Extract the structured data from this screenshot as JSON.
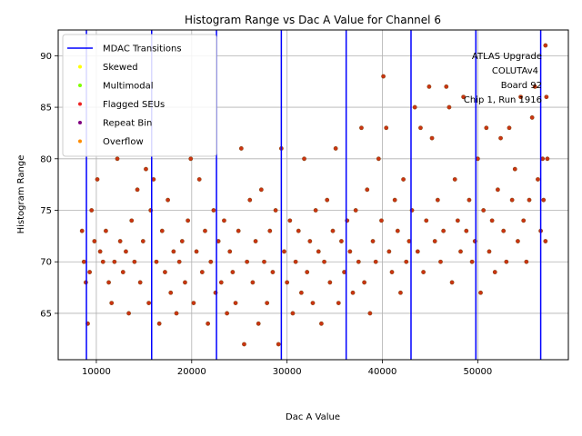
{
  "chart_data": {
    "type": "scatter",
    "title": "Histogram Range vs Dac A Value for Channel 6",
    "xlabel": "Dac A Value",
    "ylabel": "Histogram Range",
    "xlim": [
      6000,
      59500
    ],
    "ylim": [
      60.5,
      92.5
    ],
    "xticks": [
      10000,
      20000,
      30000,
      40000,
      50000
    ],
    "xtick_labels": [
      "10000",
      "20000",
      "30000",
      "40000",
      "50000"
    ],
    "yticks": [
      65,
      70,
      75,
      80,
      85,
      90
    ],
    "ytick_labels": [
      "65",
      "70",
      "75",
      "80",
      "85",
      "90"
    ],
    "grid": true,
    "legend_position": "upper-left",
    "legend": [
      {
        "label": "MDAC Transitions",
        "kind": "line",
        "color": "#0000ff"
      },
      {
        "label": "Skewed",
        "kind": "point",
        "color": "#ffff00"
      },
      {
        "label": "Multimodal",
        "kind": "point",
        "color": "#7fff00"
      },
      {
        "label": "Flagged SEUs",
        "kind": "point",
        "color": "#ee2222"
      },
      {
        "label": "Repeat Bin",
        "kind": "point",
        "color": "#800080"
      },
      {
        "label": "Overflow",
        "kind": "point",
        "color": "#ff8c00"
      }
    ],
    "annotation_lines": [
      "ATLAS Upgrade",
      "COLUTAv4",
      "Board 92",
      "Chip 1, Run 1916"
    ],
    "mdac_transitions": [
      8960,
      15800,
      22600,
      29400,
      36200,
      43000,
      49800,
      56600
    ],
    "series": [
      {
        "name": "Flagged SEUs",
        "color": "#cc3311",
        "edge": "#8b4513",
        "points": [
          [
            8500,
            73
          ],
          [
            8700,
            70
          ],
          [
            8900,
            68
          ],
          [
            9100,
            64
          ],
          [
            9300,
            69
          ],
          [
            9500,
            75
          ],
          [
            9800,
            72
          ],
          [
            10100,
            78
          ],
          [
            10400,
            71
          ],
          [
            10700,
            70
          ],
          [
            11000,
            73
          ],
          [
            11300,
            68
          ],
          [
            11600,
            66
          ],
          [
            11900,
            70
          ],
          [
            12200,
            80
          ],
          [
            12500,
            72
          ],
          [
            12800,
            69
          ],
          [
            13100,
            71
          ],
          [
            13400,
            65
          ],
          [
            13700,
            74
          ],
          [
            14000,
            70
          ],
          [
            14300,
            77
          ],
          [
            14600,
            68
          ],
          [
            14900,
            72
          ],
          [
            15200,
            79
          ],
          [
            15500,
            66
          ],
          [
            15700,
            75
          ],
          [
            16000,
            78
          ],
          [
            16300,
            70
          ],
          [
            16600,
            64
          ],
          [
            16900,
            73
          ],
          [
            17200,
            69
          ],
          [
            17500,
            76
          ],
          [
            17800,
            67
          ],
          [
            18100,
            71
          ],
          [
            18400,
            65
          ],
          [
            18700,
            70
          ],
          [
            19000,
            72
          ],
          [
            19300,
            68
          ],
          [
            19600,
            74
          ],
          [
            19900,
            80
          ],
          [
            20200,
            66
          ],
          [
            20500,
            71
          ],
          [
            20800,
            78
          ],
          [
            21100,
            69
          ],
          [
            21400,
            73
          ],
          [
            21700,
            64
          ],
          [
            22000,
            70
          ],
          [
            22300,
            75
          ],
          [
            22500,
            67
          ],
          [
            22800,
            72
          ],
          [
            23100,
            68
          ],
          [
            23400,
            74
          ],
          [
            23700,
            65
          ],
          [
            24000,
            71
          ],
          [
            24300,
            69
          ],
          [
            24600,
            66
          ],
          [
            24900,
            73
          ],
          [
            25200,
            81
          ],
          [
            25500,
            62
          ],
          [
            25800,
            70
          ],
          [
            26100,
            76
          ],
          [
            26400,
            68
          ],
          [
            26700,
            72
          ],
          [
            27000,
            64
          ],
          [
            27300,
            77
          ],
          [
            27600,
            70
          ],
          [
            27900,
            66
          ],
          [
            28200,
            73
          ],
          [
            28500,
            69
          ],
          [
            28800,
            75
          ],
          [
            29100,
            62
          ],
          [
            29400,
            81
          ],
          [
            29700,
            71
          ],
          [
            30000,
            68
          ],
          [
            30300,
            74
          ],
          [
            30600,
            65
          ],
          [
            30900,
            70
          ],
          [
            31200,
            73
          ],
          [
            31500,
            67
          ],
          [
            31800,
            80
          ],
          [
            32100,
            69
          ],
          [
            32400,
            72
          ],
          [
            32700,
            66
          ],
          [
            33000,
            75
          ],
          [
            33300,
            71
          ],
          [
            33600,
            64
          ],
          [
            33900,
            70
          ],
          [
            34200,
            76
          ],
          [
            34500,
            68
          ],
          [
            34800,
            73
          ],
          [
            35100,
            81
          ],
          [
            35400,
            66
          ],
          [
            35700,
            72
          ],
          [
            36000,
            69
          ],
          [
            36300,
            74
          ],
          [
            36600,
            71
          ],
          [
            36900,
            67
          ],
          [
            37200,
            75
          ],
          [
            37500,
            70
          ],
          [
            37800,
            83
          ],
          [
            38100,
            68
          ],
          [
            38400,
            77
          ],
          [
            38700,
            65
          ],
          [
            39000,
            72
          ],
          [
            39300,
            70
          ],
          [
            39600,
            80
          ],
          [
            39900,
            74
          ],
          [
            40100,
            88
          ],
          [
            40400,
            83
          ],
          [
            40700,
            71
          ],
          [
            41000,
            69
          ],
          [
            41300,
            76
          ],
          [
            41600,
            73
          ],
          [
            41900,
            67
          ],
          [
            42200,
            78
          ],
          [
            42500,
            70
          ],
          [
            42800,
            72
          ],
          [
            43100,
            75
          ],
          [
            43400,
            85
          ],
          [
            43700,
            71
          ],
          [
            44000,
            83
          ],
          [
            44300,
            69
          ],
          [
            44600,
            74
          ],
          [
            44900,
            87
          ],
          [
            45200,
            82
          ],
          [
            45500,
            72
          ],
          [
            45800,
            76
          ],
          [
            46100,
            70
          ],
          [
            46400,
            73
          ],
          [
            46700,
            87
          ],
          [
            47000,
            85
          ],
          [
            47300,
            68
          ],
          [
            47600,
            78
          ],
          [
            47900,
            74
          ],
          [
            48200,
            71
          ],
          [
            48500,
            86
          ],
          [
            48800,
            73
          ],
          [
            49100,
            76
          ],
          [
            49400,
            70
          ],
          [
            49700,
            72
          ],
          [
            50000,
            80
          ],
          [
            50300,
            67
          ],
          [
            50600,
            75
          ],
          [
            50900,
            83
          ],
          [
            51200,
            71
          ],
          [
            51500,
            74
          ],
          [
            51800,
            69
          ],
          [
            52100,
            77
          ],
          [
            52400,
            82
          ],
          [
            52700,
            73
          ],
          [
            53000,
            70
          ],
          [
            53300,
            83
          ],
          [
            53600,
            76
          ],
          [
            53900,
            79
          ],
          [
            54200,
            72
          ],
          [
            54500,
            86
          ],
          [
            54800,
            74
          ],
          [
            55100,
            70
          ],
          [
            55400,
            76
          ],
          [
            55700,
            84
          ],
          [
            56000,
            87
          ],
          [
            56300,
            78
          ],
          [
            56600,
            73
          ],
          [
            56900,
            76
          ],
          [
            57100,
            91
          ],
          [
            57200,
            86
          ],
          [
            57300,
            80
          ],
          [
            57100,
            72
          ],
          [
            56800,
            80
          ]
        ]
      }
    ]
  }
}
